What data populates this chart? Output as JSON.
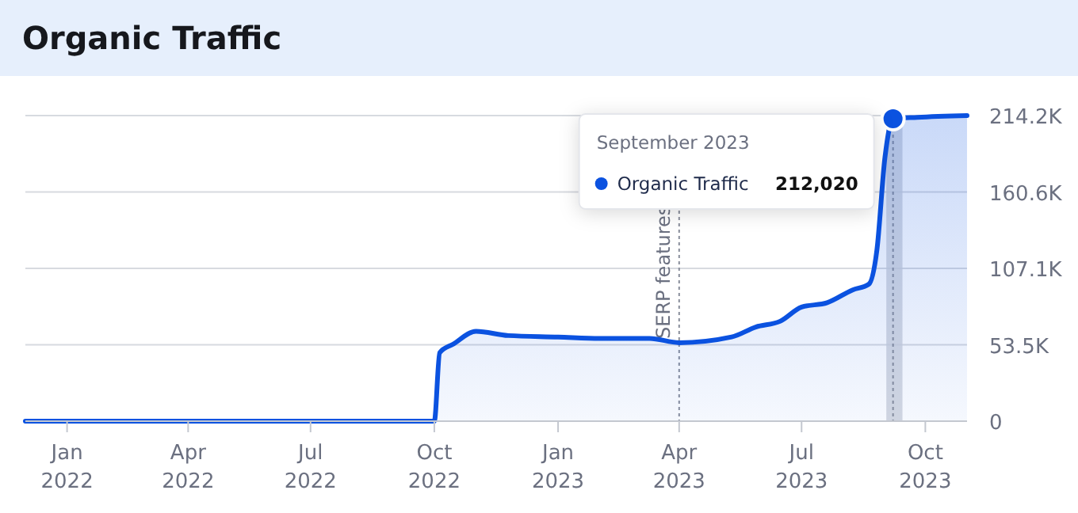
{
  "chart_data": {
    "type": "area",
    "title": "Organic Traffic",
    "x": [
      "2021-12-01",
      "2022-09-25",
      "2022-10-01",
      "2022-10-05",
      "2022-10-15",
      "2022-11-01",
      "2022-11-25",
      "2023-01-01",
      "2023-02-01",
      "2023-03-10",
      "2023-04-01",
      "2023-05-10",
      "2023-05-28",
      "2023-06-15",
      "2023-07-01",
      "2023-07-20",
      "2023-08-08",
      "2023-08-20",
      "2023-08-26",
      "2023-09-01",
      "2023-09-07",
      "2023-09-25",
      "2023-11-01"
    ],
    "series": [
      {
        "name": "Organic Traffic",
        "color": "#0b52e0",
        "values": [
          0,
          0,
          0,
          48000,
          54000,
          63000,
          60000,
          59000,
          58000,
          58000,
          55000,
          59000,
          66000,
          70000,
          80000,
          83000,
          92000,
          96000,
          120000,
          185000,
          212020,
          213000,
          214200
        ]
      }
    ],
    "xlim": [
      "2021-12-01",
      "2023-11-01"
    ],
    "xticks": [
      {
        "value": "2022-01-01",
        "label": "Jan 2022"
      },
      {
        "value": "2022-04-01",
        "label": "Apr 2022"
      },
      {
        "value": "2022-07-01",
        "label": "Jul 2022"
      },
      {
        "value": "2022-10-01",
        "label": "Oct 2022"
      },
      {
        "value": "2023-01-01",
        "label": "Jan 2023"
      },
      {
        "value": "2023-04-01",
        "label": "Apr 2023"
      },
      {
        "value": "2023-07-01",
        "label": "Jul 2023"
      },
      {
        "value": "2023-10-01",
        "label": "Oct 2023"
      }
    ],
    "ylim": [
      0,
      214200
    ],
    "yticks": [
      0,
      {
        "value": 53500,
        "label": "53.5K"
      },
      {
        "value": 107100,
        "label": "107.1K"
      },
      {
        "value": 160600,
        "label": "160.6K"
      },
      {
        "value": 214200,
        "label": "214.2K"
      }
    ],
    "grid": "y",
    "bands": [
      {
        "axis": "x",
        "from": "2023-09-02",
        "to": "2023-09-14",
        "color": "#cdd1da"
      }
    ],
    "ref_lines": [
      {
        "axis": "x",
        "value": "2023-04-01",
        "label": "SERP features",
        "line_style": "dotted",
        "color": "#8a8f9c"
      },
      {
        "axis": "x",
        "value": "2023-09-07",
        "label": null,
        "line_style": "dotted",
        "color": "#8a8f9c"
      }
    ],
    "annotations": [
      "September 2023",
      "212,020"
    ]
  }
}
